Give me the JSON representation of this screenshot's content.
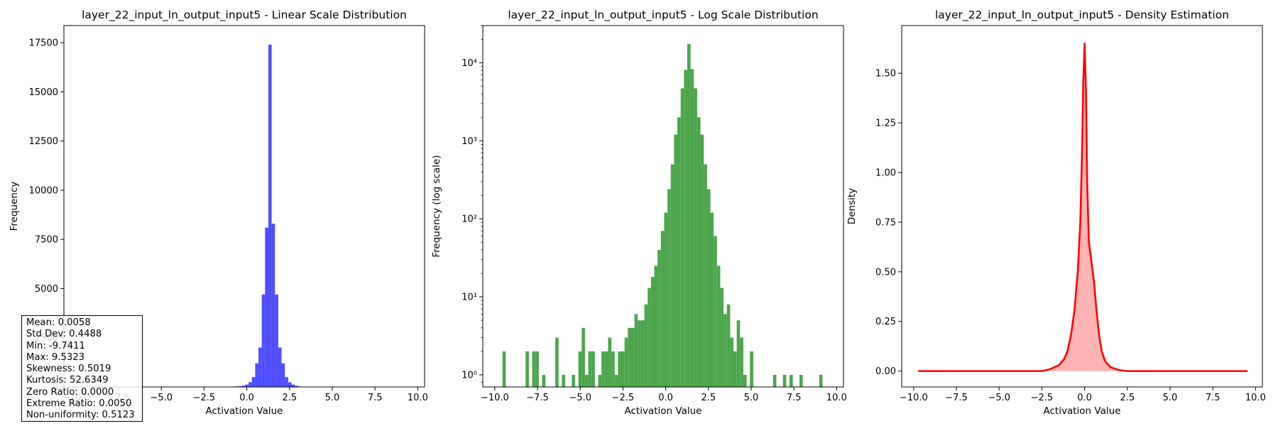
{
  "chart_data": [
    {
      "type": "bar",
      "title": "layer_22_input_ln_output_input5 - Linear Scale Distribution",
      "xlabel": "Activation Value",
      "ylabel": "Frequency",
      "xlim": [
        -10.7,
        10.4
      ],
      "ylim": [
        0,
        18370
      ],
      "color": "#4444ff",
      "xticks": [
        -10.0,
        -7.5,
        -5.0,
        -2.5,
        0.0,
        2.5,
        5.0,
        7.5,
        10.0
      ],
      "xtick_labels": [
        "−10.0",
        "−7.5",
        "−5.0",
        "−2.5",
        "0.0",
        "2.5",
        "5.0",
        "7.5",
        "10.0"
      ],
      "yticks": [
        0,
        2500,
        5000,
        7500,
        10000,
        12500,
        15000,
        17500
      ],
      "ytick_labels": [
        "0",
        "2500",
        "5000",
        "7500",
        "10000",
        "12500",
        "15000",
        "17500"
      ],
      "bin_start": -9.74,
      "bin_width": 0.193,
      "values": [
        0,
        2,
        0,
        0,
        0,
        0,
        0,
        0,
        2,
        0,
        2,
        2,
        0,
        1,
        0,
        0,
        0,
        3,
        0,
        1,
        0,
        0,
        1,
        0,
        2,
        4,
        1,
        2,
        2,
        0,
        1,
        2,
        2,
        3,
        2,
        1,
        2,
        2,
        3,
        4,
        4,
        6,
        5,
        5,
        8,
        13,
        18,
        25,
        40,
        70,
        120,
        240,
        500,
        1200,
        2000,
        4700,
        8100,
        17400,
        8300,
        4700,
        2000,
        1200,
        500,
        240,
        120,
        60,
        25,
        13,
        6,
        8,
        3,
        2,
        5,
        3,
        1,
        0,
        2,
        0,
        0,
        0,
        0,
        0,
        0,
        1,
        0,
        0,
        1,
        0,
        1,
        0,
        0,
        1,
        0,
        0,
        0,
        0,
        0,
        1,
        0,
        0
      ]
    },
    {
      "type": "bar",
      "title": "layer_22_input_ln_output_input5 - Log Scale Distribution",
      "xlabel": "Activation Value",
      "ylabel": "Frequency (log scale)",
      "log_y": true,
      "xlim": [
        -10.7,
        10.4
      ],
      "ylim": [
        0.7,
        30000
      ],
      "color": "#4ca64c",
      "xticks": [
        -10.0,
        -7.5,
        -5.0,
        -2.5,
        0.0,
        2.5,
        5.0,
        7.5,
        10.0
      ],
      "xtick_labels": [
        "−10.0",
        "−7.5",
        "−5.0",
        "−2.5",
        "0.0",
        "2.5",
        "5.0",
        "7.5",
        "10.0"
      ],
      "yticks": [
        1,
        10,
        100,
        1000,
        10000
      ],
      "ytick_labels": [
        "10⁰",
        "10¹",
        "10²",
        "10³",
        "10⁴"
      ],
      "bin_start": -9.74,
      "bin_width": 0.193,
      "values": [
        0,
        2,
        0,
        0,
        0,
        0,
        0,
        0,
        2,
        0,
        2,
        2,
        0,
        1,
        0,
        0,
        0,
        3,
        0,
        1,
        0,
        0,
        1,
        0,
        2,
        4,
        1,
        2,
        2,
        0,
        1,
        2,
        2,
        3,
        2,
        1,
        2,
        2,
        3,
        4,
        4,
        6,
        5,
        5,
        8,
        13,
        18,
        25,
        40,
        70,
        120,
        240,
        500,
        1200,
        2000,
        4700,
        8100,
        17400,
        8300,
        4700,
        2000,
        1200,
        500,
        240,
        120,
        60,
        25,
        13,
        6,
        8,
        3,
        2,
        5,
        3,
        1,
        0,
        2,
        0,
        0,
        0,
        0,
        0,
        0,
        1,
        0,
        0,
        1,
        0,
        1,
        0,
        0,
        1,
        0,
        0,
        0,
        0,
        0,
        1,
        0,
        0
      ]
    },
    {
      "type": "area",
      "title": "layer_22_input_ln_output_input5 - Density Estimation",
      "xlabel": "Activation Value",
      "ylabel": "Density",
      "xlim": [
        -10.7,
        10.4
      ],
      "ylim": [
        -0.08,
        1.74
      ],
      "line_color": "#ff0000",
      "fill_color": "#ffb3b3",
      "xticks": [
        -10.0,
        -7.5,
        -5.0,
        -2.5,
        0.0,
        2.5,
        5.0,
        7.5,
        10.0
      ],
      "xtick_labels": [
        "−10.0",
        "−7.5",
        "−5.0",
        "−2.5",
        "0.0",
        "2.5",
        "5.0",
        "7.5",
        "10.0"
      ],
      "yticks": [
        0.0,
        0.25,
        0.5,
        0.75,
        1.0,
        1.25,
        1.5
      ],
      "ytick_labels": [
        "0.00",
        "0.25",
        "0.50",
        "0.75",
        "1.00",
        "1.25",
        "1.50"
      ],
      "x": [
        -9.74,
        -5.0,
        -2.5,
        -2.0,
        -1.5,
        -1.2,
        -1.0,
        -0.8,
        -0.6,
        -0.4,
        -0.25,
        -0.15,
        -0.08,
        0.0,
        0.08,
        0.15,
        0.25,
        0.4,
        0.55,
        0.7,
        0.85,
        1.0,
        1.2,
        1.5,
        2.0,
        2.5,
        5.0,
        9.53
      ],
      "y": [
        0.0,
        0.0,
        0.0,
        0.01,
        0.03,
        0.06,
        0.1,
        0.18,
        0.3,
        0.5,
        0.75,
        1.1,
        1.45,
        1.65,
        1.4,
        0.95,
        0.65,
        0.55,
        0.45,
        0.3,
        0.18,
        0.1,
        0.05,
        0.02,
        0.005,
        0.0,
        0.0,
        0.0
      ]
    }
  ],
  "stats": {
    "mean": "Mean: 0.0058",
    "std": "Std Dev: 0.4488",
    "min": "Min: -9.7411",
    "max": "Max: 9.5323",
    "skewness": "Skewness: 0.5019",
    "kurtosis": "Kurtosis: 52.6349",
    "zero_ratio": "Zero Ratio: 0.0000",
    "extreme_ratio": "Extreme Ratio: 0.0050",
    "non_uniformity": "Non-uniformity: 0.5123"
  }
}
